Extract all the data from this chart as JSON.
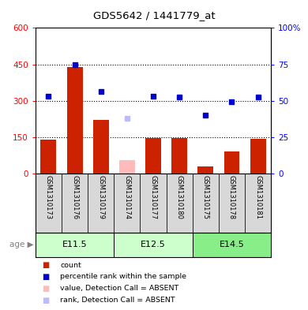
{
  "title": "GDS5642 / 1441779_at",
  "samples": [
    "GSM1310173",
    "GSM1310176",
    "GSM1310179",
    "GSM1310174",
    "GSM1310177",
    "GSM1310180",
    "GSM1310175",
    "GSM1310178",
    "GSM1310181"
  ],
  "bar_values": [
    140,
    440,
    220,
    0,
    148,
    148,
    30,
    90,
    143
  ],
  "bar_absent": [
    false,
    false,
    false,
    true,
    false,
    false,
    false,
    false,
    false
  ],
  "absent_bar_value": 55,
  "rank_values": [
    53.0,
    74.5,
    56.5,
    0,
    53.0,
    52.5,
    40.0,
    49.5,
    52.5
  ],
  "rank_absent": [
    false,
    false,
    false,
    true,
    false,
    false,
    false,
    false,
    false
  ],
  "absent_rank_value": 38.0,
  "age_groups": [
    {
      "label": "E11.5",
      "start": 0,
      "end": 3,
      "color": "#ccffcc"
    },
    {
      "label": "E12.5",
      "start": 3,
      "end": 6,
      "color": "#ccffcc"
    },
    {
      "label": "E14.5",
      "start": 6,
      "end": 9,
      "color": "#88ee88"
    }
  ],
  "ylim_left": [
    0,
    600
  ],
  "ylim_right": [
    0,
    100
  ],
  "yticks_left": [
    0,
    150,
    300,
    450,
    600
  ],
  "ytick_labels_left": [
    "0",
    "150",
    "300",
    "450",
    "600"
  ],
  "yticks_right": [
    0,
    25,
    50,
    75,
    100
  ],
  "ytick_labels_right": [
    "0",
    "25",
    "50",
    "75",
    "100%"
  ],
  "bar_color": "#cc2200",
  "bar_absent_color": "#ffbbbb",
  "rank_color": "#0000cc",
  "rank_absent_color": "#bbbbff",
  "label_age": "age",
  "legend_items": [
    {
      "label": "count",
      "color": "#cc2200"
    },
    {
      "label": "percentile rank within the sample",
      "color": "#0000cc"
    },
    {
      "label": "value, Detection Call = ABSENT",
      "color": "#ffbbbb"
    },
    {
      "label": "rank, Detection Call = ABSENT",
      "color": "#bbbbff"
    }
  ],
  "grid_yticks": [
    150,
    300,
    450
  ],
  "bar_width": 0.6
}
